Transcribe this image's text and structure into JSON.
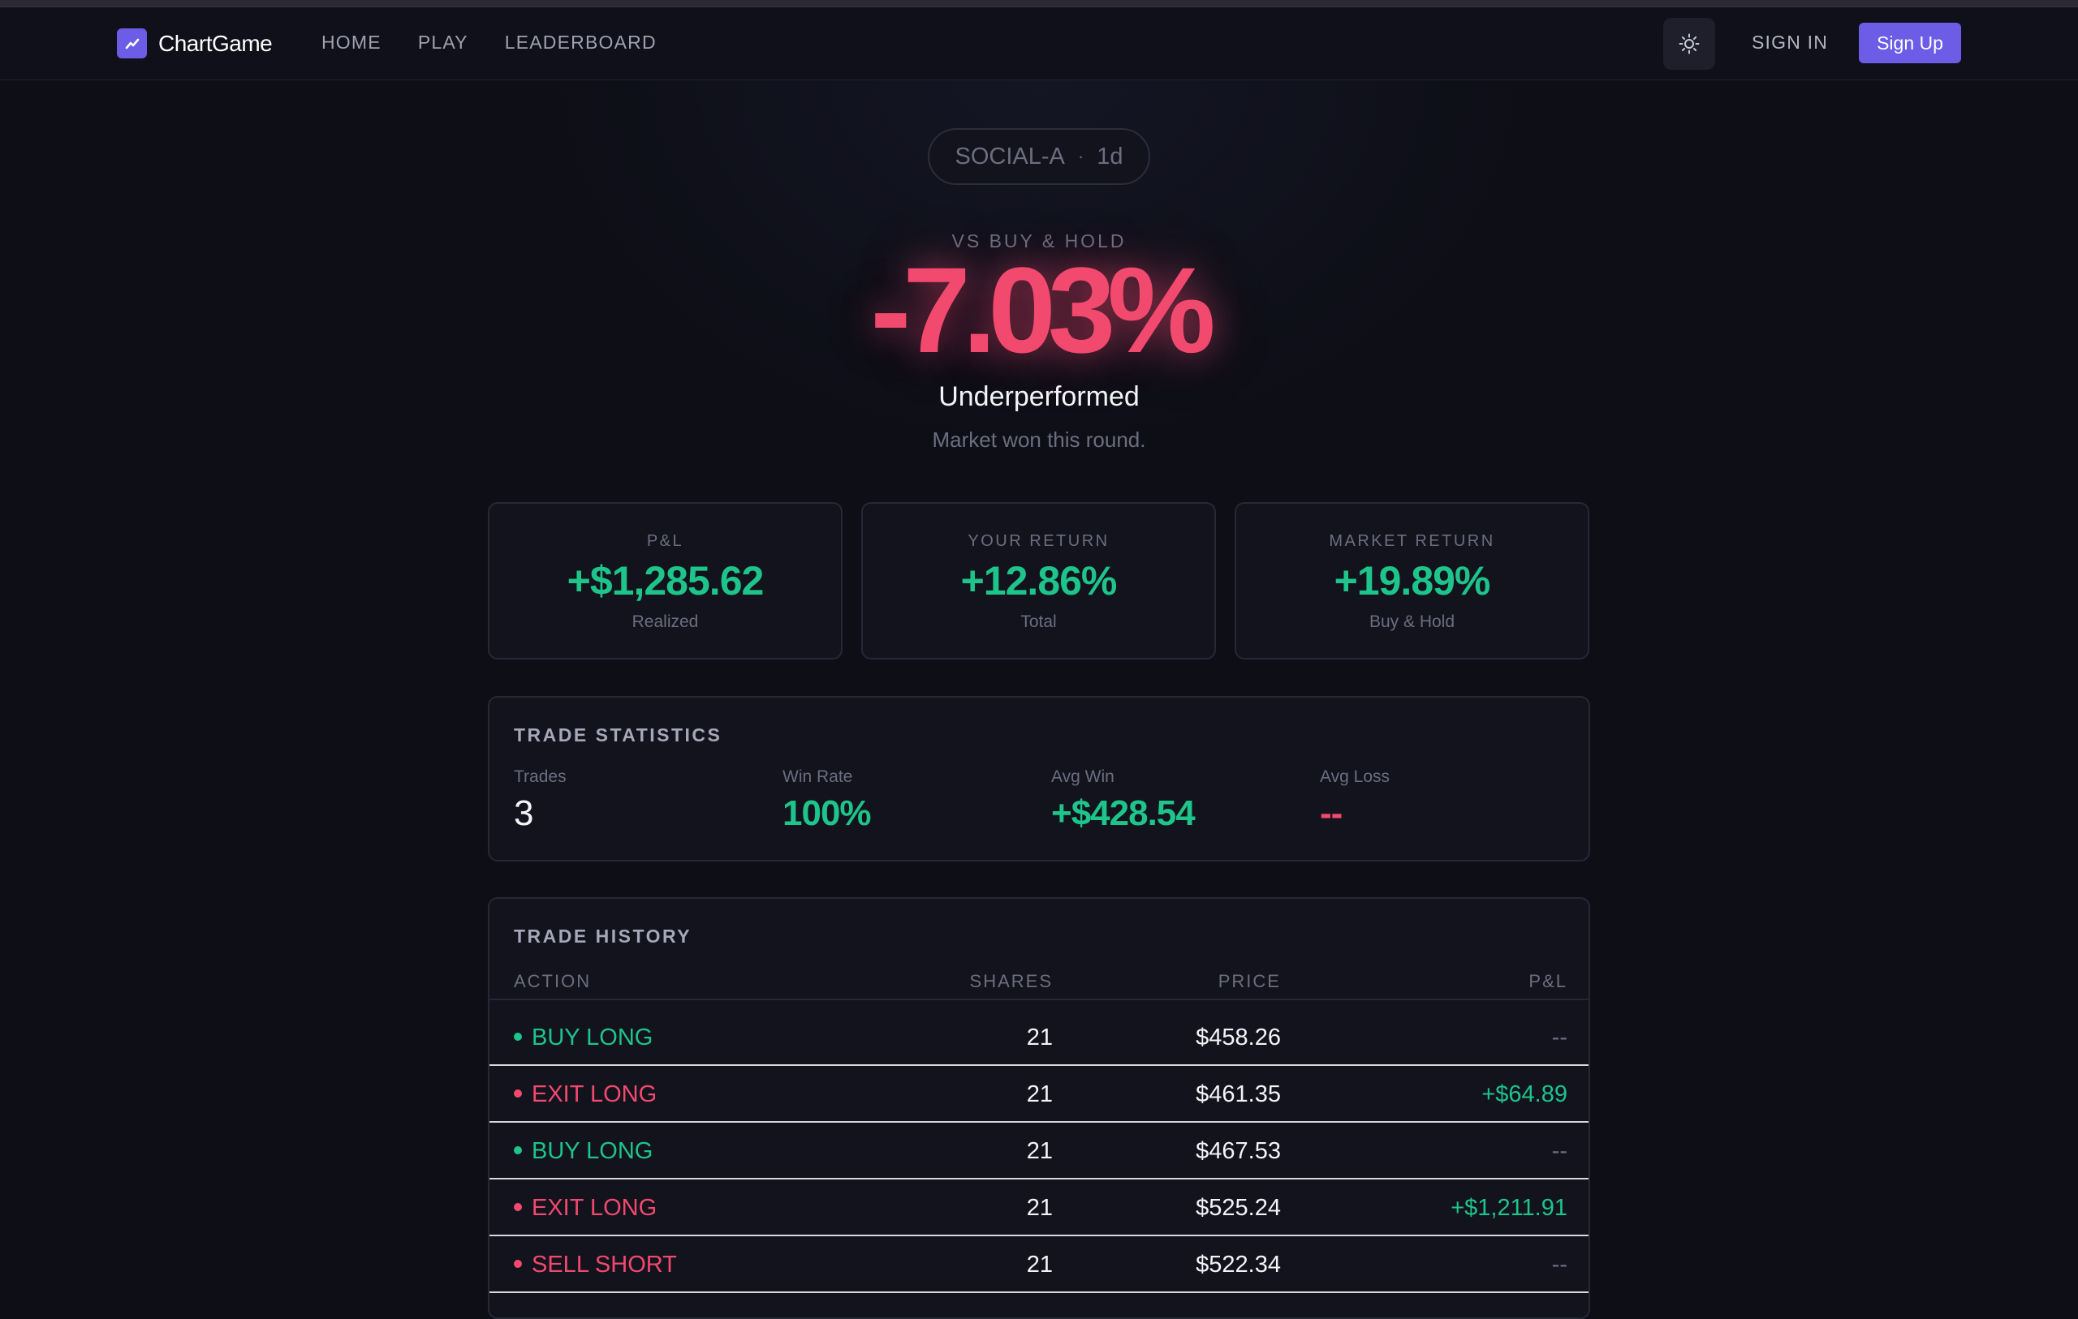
{
  "nav": {
    "brand": "ChartGame",
    "links": [
      "HOME",
      "PLAY",
      "LEADERBOARD"
    ],
    "sign_in": "SIGN IN",
    "sign_up": "Sign Up",
    "theme_icon": "sun-icon"
  },
  "game": {
    "ticker": "SOCIAL-A",
    "separator": "·",
    "timeframe": "1d"
  },
  "result": {
    "label": "VS BUY & HOLD",
    "value": "-7.03%",
    "verdict": "Underperformed",
    "subtitle": "Market won this round."
  },
  "stats": [
    {
      "label": "P&L",
      "value": "+$1,285.62",
      "sub": "Realized"
    },
    {
      "label": "YOUR RETURN",
      "value": "+12.86%",
      "sub": "Total"
    },
    {
      "label": "MARKET RETURN",
      "value": "+19.89%",
      "sub": "Buy & Hold"
    }
  ],
  "trade_statistics": {
    "title": "TRADE STATISTICS",
    "items": [
      {
        "label": "Trades",
        "value": "3"
      },
      {
        "label": "Win Rate",
        "value": "100%"
      },
      {
        "label": "Avg Win",
        "value": "+$428.54"
      },
      {
        "label": "Avg Loss",
        "value": "--"
      }
    ]
  },
  "trade_history": {
    "title": "TRADE HISTORY",
    "columns": [
      "ACTION",
      "SHARES",
      "PRICE",
      "P&L"
    ],
    "rows": [
      {
        "action": "BUY LONG",
        "shares": "21",
        "price": "$458.26",
        "pnl": "--"
      },
      {
        "action": "EXIT LONG",
        "shares": "21",
        "price": "$461.35",
        "pnl": "+$64.89"
      },
      {
        "action": "BUY LONG",
        "shares": "21",
        "price": "$467.53",
        "pnl": "--"
      },
      {
        "action": "EXIT LONG",
        "shares": "21",
        "price": "$525.24",
        "pnl": "+$1,211.91"
      },
      {
        "action": "SELL SHORT",
        "shares": "21",
        "price": "$522.34",
        "pnl": "--"
      }
    ]
  },
  "colors": {
    "accent": "#6d5ce6",
    "positive": "#1ec48a",
    "negative": "#f2496e",
    "background": "#0d0e16"
  }
}
